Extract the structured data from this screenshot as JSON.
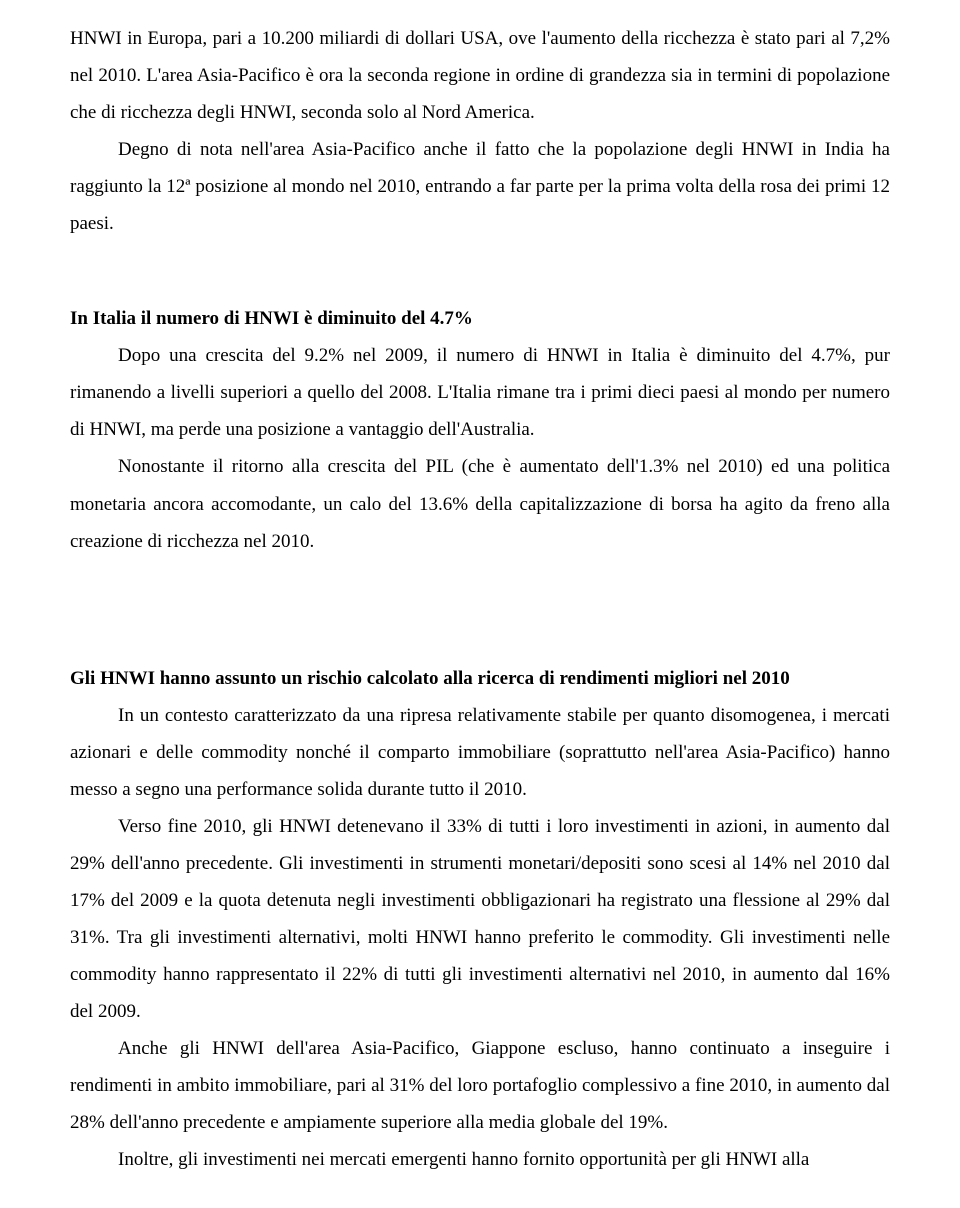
{
  "p1": "HNWI in Europa, pari a 10.200 miliardi di dollari USA, ove l'aumento della ricchezza è stato pari al 7,2% nel 2010. L'area Asia-Pacifico è ora la seconda regione in ordine di grandezza sia in termini di popolazione che di ricchezza degli HNWI, seconda solo al Nord America.",
  "p2": "Degno di nota nell'area Asia-Pacifico anche il fatto che la popolazione degli HNWI in India ha raggiunto la 12ª posizione al mondo nel 2010, entrando a far parte per la prima volta della rosa dei primi 12 paesi.",
  "h1": "In Italia il numero di HNWI è diminuito del 4.7%",
  "p3": "Dopo una crescita del 9.2% nel 2009, il numero di HNWI in Italia è diminuito del 4.7%, pur rimanendo a livelli superiori a quello del 2008. L'Italia rimane tra i primi dieci paesi al mondo per numero di HNWI, ma perde una posizione a vantaggio dell'Australia.",
  "p4": "Nonostante il ritorno alla crescita del PIL (che è aumentato dell'1.3% nel 2010) ed una politica monetaria ancora accomodante, un calo del 13.6% della capitalizzazione di borsa ha agito da freno alla creazione di ricchezza nel 2010.",
  "h2": "Gli HNWI hanno assunto un rischio calcolato alla ricerca di rendimenti migliori nel 2010",
  "p5": "In un contesto caratterizzato da una ripresa relativamente stabile per quanto disomogenea, i mercati azionari e delle commodity nonché il comparto immobiliare (soprattutto nell'area Asia-Pacifico) hanno messo a segno una performance solida durante tutto il 2010.",
  "p6": "Verso fine 2010, gli HNWI detenevano il 33% di tutti i loro investimenti in azioni, in aumento dal 29% dell'anno precedente. Gli investimenti in strumenti monetari/depositi sono scesi al 14% nel 2010 dal 17% del 2009 e la quota detenuta negli investimenti obbligazionari ha registrato una flessione al 29% dal 31%. Tra gli investimenti alternativi, molti HNWI hanno preferito le commodity. Gli investimenti nelle commodity hanno rappresentato il 22% di tutti gli investimenti alternativi nel 2010, in aumento dal 16% del 2009.",
  "p7": "Anche gli HNWI dell'area Asia-Pacifico, Giappone escluso, hanno continuato a inseguire i rendimenti in ambito immobiliare, pari al 31% del loro portafoglio complessivo a fine 2010, in aumento dal 28% dell'anno precedente e ampiamente superiore alla media globale del 19%.",
  "p8": "Inoltre, gli investimenti nei mercati emergenti hanno fornito opportunità per gli HNWI alla"
}
